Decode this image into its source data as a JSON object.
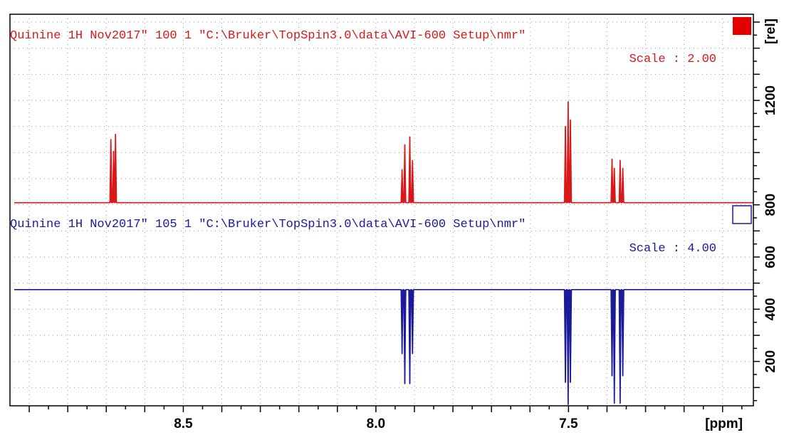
{
  "chart_data": {
    "type": "line",
    "x_unit": "[ppm]",
    "y_unit": "[rel]",
    "x_ticks": [
      {
        "value": 8.5,
        "label": "8.5"
      },
      {
        "value": 8.0,
        "label": "8.0"
      },
      {
        "value": 7.5,
        "label": "7.5"
      }
    ],
    "y_ticks": [
      {
        "value": 200,
        "label": "200"
      },
      {
        "value": 400,
        "label": "400"
      },
      {
        "value": 600,
        "label": "600"
      },
      {
        "value": 800,
        "label": "800"
      },
      {
        "value": 1200,
        "label": "1200"
      }
    ],
    "xlim": [
      8.95,
      7.02
    ],
    "ylim": [
      30,
      1530
    ],
    "grid": true,
    "spectra": [
      {
        "header": "Quinine 1H Nov2017\"  100  1  \"C:\\Bruker\\TopSpin3.0\\data\\AVI-600 Setup\\nmr\"",
        "scale_label": "Scale : 2.00",
        "color": "#d81818",
        "legend_marker": "filled-square",
        "baseline": 808,
        "peaks": [
          {
            "ppm": 8.688,
            "height": 1050
          },
          {
            "ppm": 8.681,
            "height": 1005
          },
          {
            "ppm": 8.676,
            "height": 1070
          },
          {
            "ppm": 7.932,
            "height": 935
          },
          {
            "ppm": 7.925,
            "height": 1030
          },
          {
            "ppm": 7.912,
            "height": 1060
          },
          {
            "ppm": 7.905,
            "height": 970
          },
          {
            "ppm": 7.508,
            "height": 1100
          },
          {
            "ppm": 7.501,
            "height": 1195
          },
          {
            "ppm": 7.495,
            "height": 1125
          },
          {
            "ppm": 7.387,
            "height": 975
          },
          {
            "ppm": 7.381,
            "height": 940
          },
          {
            "ppm": 7.366,
            "height": 970
          },
          {
            "ppm": 7.359,
            "height": 940
          }
        ]
      },
      {
        "header": "Quinine 1H Nov2017\"  105  1  \"C:\\Bruker\\TopSpin3.0\\data\\AVI-600 Setup\\nmr\"",
        "scale_label": "Scale : 4.00",
        "color": "#1a1a9a",
        "legend_marker": "open-square",
        "baseline": 475,
        "peaks": [
          {
            "ppm": 7.932,
            "height": 230
          },
          {
            "ppm": 7.925,
            "height": 115
          },
          {
            "ppm": 7.912,
            "height": 115
          },
          {
            "ppm": 7.905,
            "height": 230
          },
          {
            "ppm": 7.508,
            "height": 120
          },
          {
            "ppm": 7.501,
            "height": 35
          },
          {
            "ppm": 7.495,
            "height": 120
          },
          {
            "ppm": 7.387,
            "height": 145
          },
          {
            "ppm": 7.381,
            "height": 40
          },
          {
            "ppm": 7.366,
            "height": 40
          },
          {
            "ppm": 7.359,
            "height": 145
          }
        ]
      }
    ]
  }
}
